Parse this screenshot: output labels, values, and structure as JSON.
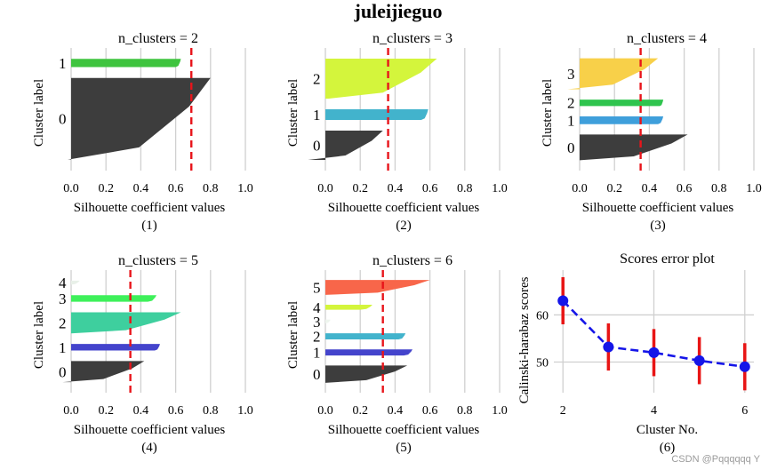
{
  "figure": {
    "title": "juleijieguo",
    "watermark": "CSDN @Pqqqqqq Y"
  },
  "chart_data": [
    {
      "type": "silhouette",
      "title": "n_clusters = 2",
      "caption": "(1)",
      "xlabel": "Silhouette coefficient values",
      "ylabel": "Cluster label",
      "xlim": [
        -0.1,
        1.0
      ],
      "xticks": [
        "0.0",
        "0.2",
        "0.4",
        "0.6",
        "0.8",
        "1.0"
      ],
      "avg_silhouette": 0.69,
      "clusters": [
        {
          "label": "0",
          "color": "#3d3d3d",
          "size": 60,
          "max": 0.8,
          "min": -0.02
        },
        {
          "label": "1",
          "color": "#3ec43e",
          "size": 6,
          "max": 0.63,
          "min": 0.6
        }
      ]
    },
    {
      "type": "silhouette",
      "title": "n_clusters = 3",
      "caption": "(2)",
      "xlabel": "Silhouette coefficient values",
      "ylabel": "Cluster label",
      "xlim": [
        -0.1,
        1.0
      ],
      "xticks": [
        "0.0",
        "0.2",
        "0.4",
        "0.6",
        "0.8",
        "1.0"
      ],
      "avg_silhouette": 0.36,
      "clusters": [
        {
          "label": "0",
          "color": "#3d3d3d",
          "size": 22,
          "max": 0.33,
          "min": -0.1
        },
        {
          "label": "1",
          "color": "#42b3cc",
          "size": 8,
          "max": 0.59,
          "min": 0.55
        },
        {
          "label": "2",
          "color": "#d4f53c",
          "size": 30,
          "max": 0.64,
          "min": 0.02
        }
      ]
    },
    {
      "type": "silhouette",
      "title": "n_clusters = 4",
      "caption": "(3)",
      "xlabel": "Silhouette coefficient values",
      "ylabel": "Cluster label",
      "xlim": [
        -0.1,
        1.0
      ],
      "xticks": [
        "0.0",
        "0.2",
        "0.4",
        "0.6",
        "0.8",
        "1.0"
      ],
      "avg_silhouette": 0.35,
      "clusters": [
        {
          "label": "0",
          "color": "#3d3d3d",
          "size": 20,
          "max": 0.62,
          "min": 0.0
        },
        {
          "label": "1",
          "color": "#3f9fdb",
          "size": 6,
          "max": 0.48,
          "min": 0.45
        },
        {
          "label": "2",
          "color": "#2fc44e",
          "size": 5,
          "max": 0.48,
          "min": 0.46
        },
        {
          "label": "3",
          "color": "#f8d049",
          "size": 24,
          "max": 0.45,
          "min": -0.07
        }
      ]
    },
    {
      "type": "silhouette",
      "title": "n_clusters = 5",
      "caption": "(4)",
      "xlabel": "Silhouette coefficient values",
      "ylabel": "Cluster label",
      "xlim": [
        -0.1,
        1.0
      ],
      "xticks": [
        "0.0",
        "0.2",
        "0.4",
        "0.6",
        "0.8",
        "1.0"
      ],
      "avg_silhouette": 0.34,
      "clusters": [
        {
          "label": "0",
          "color": "#3d3d3d",
          "size": 16,
          "max": 0.42,
          "min": -0.05
        },
        {
          "label": "1",
          "color": "#4444cc",
          "size": 5,
          "max": 0.51,
          "min": 0.48
        },
        {
          "label": "2",
          "color": "#3ecf9e",
          "size": 16,
          "max": 0.63,
          "min": 0.0
        },
        {
          "label": "3",
          "color": "#3ef05a",
          "size": 5,
          "max": 0.49,
          "min": 0.44
        },
        {
          "label": "4",
          "color": "#e8f0e8",
          "size": 3,
          "max": 0.05,
          "min": 0.0
        }
      ]
    },
    {
      "type": "silhouette",
      "title": "n_clusters = 6",
      "caption": "(5)",
      "xlabel": "Silhouette coefficient values",
      "ylabel": "Cluster label",
      "xlim": [
        -0.1,
        1.0
      ],
      "xticks": [
        "0.0",
        "0.2",
        "0.4",
        "0.6",
        "0.8",
        "1.0"
      ],
      "avg_silhouette": 0.33,
      "clusters": [
        {
          "label": "0",
          "color": "#3d3d3d",
          "size": 14,
          "max": 0.47,
          "min": 0.0
        },
        {
          "label": "1",
          "color": "#4444cc",
          "size": 5,
          "max": 0.5,
          "min": 0.45
        },
        {
          "label": "2",
          "color": "#42b3cc",
          "size": 5,
          "max": 0.46,
          "min": 0.42
        },
        {
          "label": "3",
          "color": "#eef5ee",
          "size": 3,
          "max": 0.03,
          "min": 0.0
        },
        {
          "label": "4",
          "color": "#d4f53c",
          "size": 4,
          "max": 0.27,
          "min": 0.2
        },
        {
          "label": "5",
          "color": "#f8664a",
          "size": 12,
          "max": 0.6,
          "min": 0.0
        }
      ]
    },
    {
      "type": "errorbar",
      "title": "Scores error plot",
      "caption": "(6)",
      "xlabel": "Cluster No.",
      "ylabel": "Calinski-harabaz scores",
      "x": [
        2,
        3,
        4,
        5,
        6
      ],
      "y": [
        63,
        53.2,
        52,
        50.3,
        49
      ],
      "yerr": [
        5,
        5,
        5,
        5,
        5
      ],
      "xticks": [
        2,
        4,
        6
      ],
      "yticks": [
        50,
        60
      ],
      "xlim": [
        1.8,
        6.2
      ],
      "ylim": [
        43.5,
        69.5
      ],
      "line_color": "#1515e8",
      "err_color": "#e81515"
    }
  ]
}
